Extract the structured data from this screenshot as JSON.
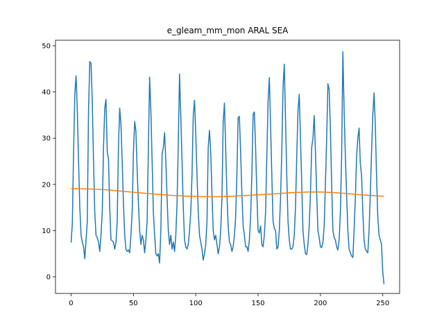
{
  "chart_data": {
    "type": "line",
    "title": "e_gleam_mm_mon ARAL SEA",
    "x": [
      0,
      1,
      2,
      3,
      4,
      5,
      6,
      7,
      8,
      9,
      10,
      11,
      12,
      13,
      14,
      15,
      16,
      17,
      18,
      19,
      20,
      21,
      22,
      23,
      24,
      25,
      26,
      27,
      28,
      29,
      30,
      31,
      32,
      33,
      34,
      35,
      36,
      37,
      38,
      39,
      40,
      41,
      42,
      43,
      44,
      45,
      46,
      47,
      48,
      49,
      50,
      51,
      52,
      53,
      54,
      55,
      56,
      57,
      58,
      59,
      60,
      61,
      62,
      63,
      64,
      65,
      66,
      67,
      68,
      69,
      70,
      71,
      72,
      73,
      74,
      75,
      76,
      77,
      78,
      79,
      80,
      81,
      82,
      83,
      84,
      85,
      86,
      87,
      88,
      89,
      90,
      91,
      92,
      93,
      94,
      95,
      96,
      97,
      98,
      99,
      100,
      101,
      102,
      103,
      104,
      105,
      106,
      107,
      108,
      109,
      110,
      111,
      112,
      113,
      114,
      115,
      116,
      117,
      118,
      119,
      120,
      121,
      122,
      123,
      124,
      125,
      126,
      127,
      128,
      129,
      130,
      131,
      132,
      133,
      134,
      135,
      136,
      137,
      138,
      139,
      140,
      141,
      142,
      143,
      144,
      145,
      146,
      147,
      148,
      149,
      150,
      151,
      152,
      153,
      154,
      155,
      156,
      157,
      158,
      159,
      160,
      161,
      162,
      163,
      164,
      165,
      166,
      167,
      168,
      169,
      170,
      171,
      172,
      173,
      174,
      175,
      176,
      177,
      178,
      179,
      180,
      181,
      182,
      183,
      184,
      185,
      186,
      187,
      188,
      189,
      190,
      191,
      192,
      193,
      194,
      195,
      196,
      197,
      198,
      199,
      200,
      201,
      202,
      203,
      204,
      205,
      206,
      207,
      208,
      209,
      210,
      211,
      212,
      213,
      214,
      215,
      216,
      217,
      218,
      219,
      220,
      221,
      222,
      223,
      224,
      225,
      226,
      227,
      228,
      229,
      230,
      231,
      232,
      233,
      234,
      235,
      236,
      237,
      238,
      239,
      240,
      241,
      242,
      243,
      244,
      245,
      246,
      247,
      248,
      249,
      250,
      251
    ],
    "series": [
      {
        "color": "#1f77b4",
        "values": [
          7.4,
          11.5,
          27,
          39.5,
          43.5,
          36,
          25,
          15,
          9,
          7.5,
          6.5,
          3.9,
          8,
          12,
          36,
          46.6,
          46.2,
          38,
          25,
          14,
          9,
          8.5,
          7.5,
          5.5,
          9,
          14,
          28,
          36.5,
          38.4,
          27,
          25.5,
          15,
          8,
          7.8,
          7.5,
          6,
          7.5,
          12,
          28,
          36.5,
          33,
          25,
          16,
          9,
          6,
          5.5,
          5.8,
          5.2,
          9,
          14,
          27,
          33.6,
          31.5,
          23,
          16,
          10,
          7,
          9,
          8,
          5.2,
          8,
          12,
          28,
          43.2,
          36,
          25,
          14,
          9,
          5,
          4.5,
          5,
          3,
          10,
          26.5,
          28,
          31.2,
          25,
          17,
          10,
          7,
          9,
          6,
          7.5,
          5.5,
          9,
          16,
          29,
          43.9,
          35,
          25,
          15,
          8,
          6.5,
          6,
          7,
          10,
          14,
          22,
          35,
          38.2,
          31,
          22,
          14,
          9,
          7.5,
          6,
          3.6,
          5,
          7,
          12,
          28,
          31.7,
          27,
          18,
          10,
          8,
          9,
          7,
          5,
          6.5,
          10,
          17,
          33.5,
          37.6,
          28,
          18,
          11,
          7.5,
          7,
          5.5,
          6.5,
          9,
          13,
          22,
          34.5,
          34.7,
          27,
          18,
          11,
          9,
          6.5,
          6.5,
          5.5,
          8,
          13,
          22,
          35.2,
          35.7,
          28,
          18,
          10,
          9.5,
          11,
          7,
          6.5,
          9,
          14,
          26,
          38,
          43.1,
          33,
          22,
          12,
          10.5,
          10,
          6,
          6.5,
          10,
          17,
          27,
          41,
          46.0,
          34,
          22,
          12,
          8,
          6,
          6,
          6.5,
          9,
          15,
          26,
          36,
          39.5,
          30,
          20,
          10,
          7,
          5,
          4.8,
          7,
          11,
          18,
          28,
          30,
          34.9,
          27,
          18,
          10,
          8.5,
          6.5,
          6.3,
          7.5,
          11,
          20,
          30,
          41.8,
          40.5,
          32,
          20,
          10,
          8.5,
          8,
          6.5,
          5.8,
          8,
          14,
          26,
          48.7,
          36,
          26,
          18,
          10,
          6,
          5.2,
          4.5,
          4.2,
          10,
          17,
          26,
          30,
          32.2,
          24.5,
          22,
          14,
          8,
          6,
          5.5,
          5.2,
          10,
          18,
          27,
          35,
          39.8,
          33,
          22,
          13,
          9,
          8,
          7,
          1,
          -1.6
        ]
      },
      {
        "color": "#ff7f0e",
        "x": [
          0,
          10,
          20,
          30,
          40,
          50,
          60,
          70,
          80,
          90,
          100,
          110,
          120,
          130,
          140,
          150,
          160,
          170,
          180,
          190,
          200,
          210,
          220,
          230,
          240,
          250,
          251
        ],
        "values": [
          19.1,
          19.05,
          18.95,
          18.8,
          18.55,
          18.3,
          18.05,
          17.85,
          17.65,
          17.5,
          17.4,
          17.35,
          17.35,
          17.45,
          17.6,
          17.75,
          17.9,
          18.1,
          18.25,
          18.35,
          18.35,
          18.25,
          18.05,
          17.8,
          17.6,
          17.45,
          17.4
        ]
      }
    ],
    "xlim": [
      -12.5,
      263.5
    ],
    "ylim": [
      -3.6,
      51.2
    ],
    "xticks": [
      0,
      50,
      100,
      150,
      200,
      250
    ],
    "yticks": [
      0,
      10,
      20,
      30,
      40,
      50
    ]
  }
}
